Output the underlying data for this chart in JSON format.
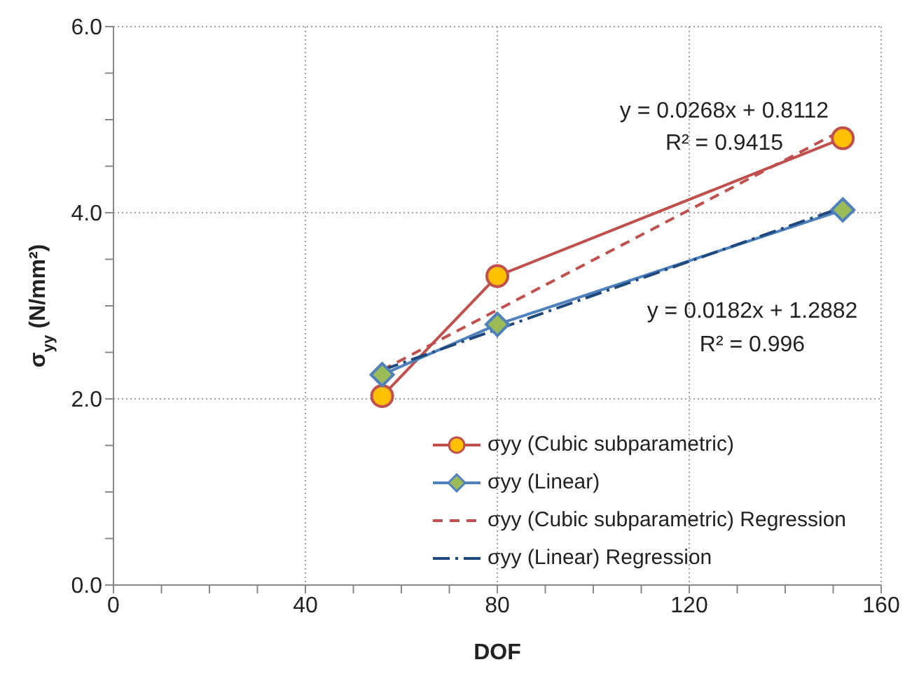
{
  "chart_data": {
    "type": "line",
    "xlabel": "DOF",
    "ylabel": "σ$_{yy}$ (N/mm²)",
    "xlim": [
      0,
      160
    ],
    "ylim": [
      0,
      6
    ],
    "xticks": [
      0,
      {
        "value": 10,
        "label": null
      },
      {
        "value": 20,
        "label": null
      },
      {
        "value": 30,
        "label": null
      },
      40,
      {
        "value": 50,
        "label": null
      },
      {
        "value": 60,
        "label": null
      },
      {
        "value": 70,
        "label": null
      },
      80,
      {
        "value": 90,
        "label": null
      },
      {
        "value": 100,
        "label": null
      },
      {
        "value": 110,
        "label": null
      },
      120,
      {
        "value": 130,
        "label": null
      },
      {
        "value": 140,
        "label": null
      },
      {
        "value": 150,
        "label": null
      },
      160
    ],
    "yticks": [
      {
        "value": 0,
        "label": "0.0"
      },
      {
        "value": 0.5,
        "label": null
      },
      {
        "value": 1,
        "label": null
      },
      {
        "value": 1.5,
        "label": null
      },
      {
        "value": 2,
        "label": "2.0"
      },
      {
        "value": 2.5,
        "label": null
      },
      {
        "value": 3,
        "label": null
      },
      {
        "value": 3.5,
        "label": null
      },
      {
        "value": 4,
        "label": "4.0"
      },
      {
        "value": 4.5,
        "label": null
      },
      {
        "value": 5,
        "label": null
      },
      {
        "value": 5.5,
        "label": null
      },
      {
        "value": 6,
        "label": "6.0"
      }
    ],
    "grid": true,
    "legend": "bottom right",
    "series": [
      {
        "name": "σyy (Cubic subparametric)",
        "color": "#c0504d",
        "x": [
          56,
          80,
          152
        ],
        "values": [
          2.03,
          3.32,
          4.8
        ],
        "marker": "circle",
        "line_style": "solid"
      },
      {
        "name": "σyy (Linear)",
        "color": "#4f81bd",
        "x": [
          56,
          80,
          152
        ],
        "values": [
          2.26,
          2.8,
          4.03
        ],
        "marker": "diamond",
        "line_style": "solid"
      },
      {
        "name": "σyy (Cubic subparametric) Regression",
        "color": "#c0504d",
        "x": [
          56,
          152
        ],
        "values": [
          2.31,
          4.89
        ],
        "marker": "none",
        "line_style": "dashed"
      },
      {
        "name": "σyy (Linear) Regression",
        "color": "#1f497d",
        "x": [
          56,
          152
        ],
        "values": [
          2.31,
          4.06
        ],
        "marker": "none",
        "line_style": "dashdot"
      }
    ],
    "annotations": [
      "y = 0.0268x + 0.8112",
      "R² = 0.9415",
      "y = 0.0182x + 1.2882",
      "R² = 0.996"
    ]
  }
}
